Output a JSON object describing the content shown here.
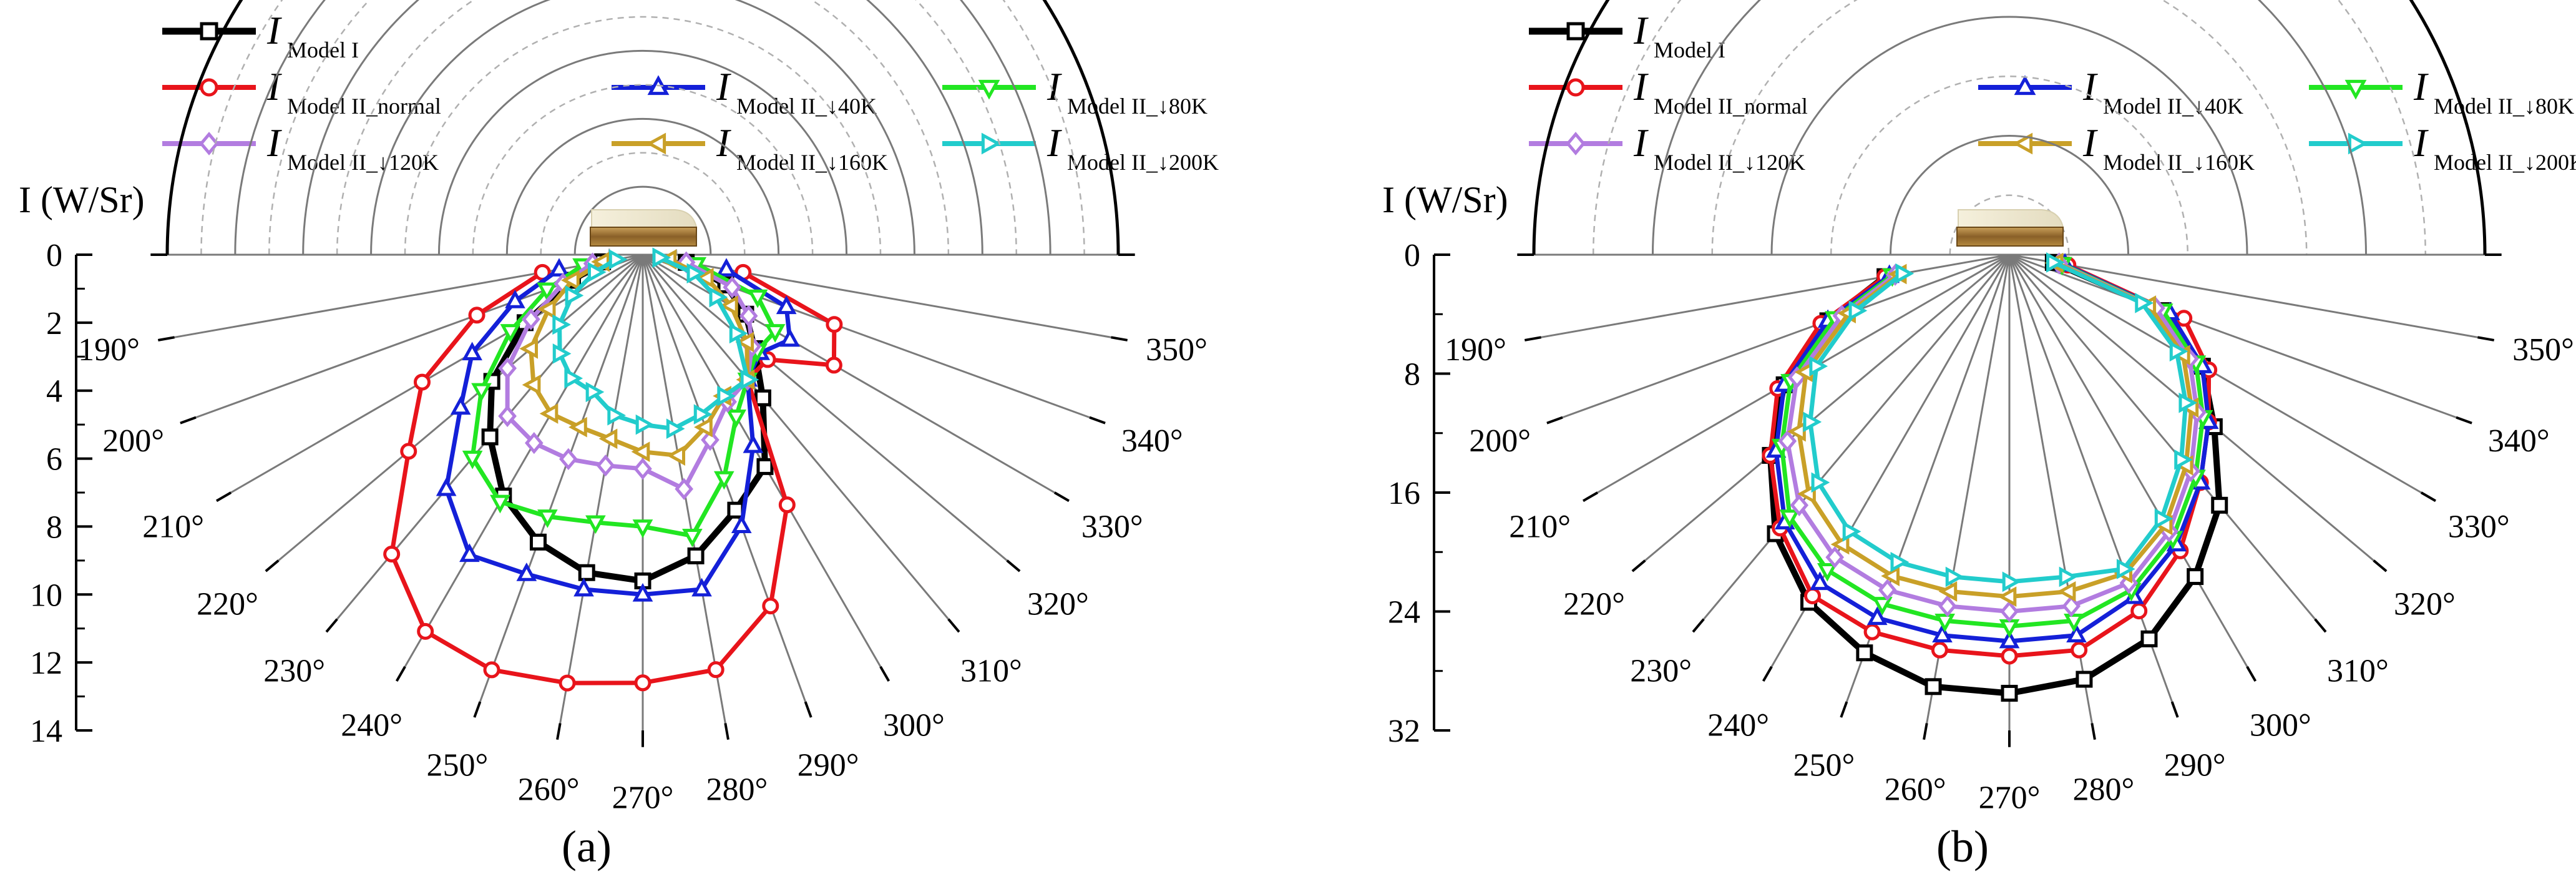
{
  "legend": [
    {
      "id": "model1",
      "main": "I",
      "sub": "Model I",
      "color": "#000000",
      "marker": "square"
    },
    {
      "id": "normal",
      "main": "I",
      "sub": "Model II_normal",
      "color": "#e8141b",
      "marker": "circle"
    },
    {
      "id": "d40",
      "main": "I",
      "sub": "Model II_↓40K",
      "color": "#1420d8",
      "marker": "triangle-up"
    },
    {
      "id": "d80",
      "main": "I",
      "sub": "Model II_↓80K",
      "color": "#22e622",
      "marker": "triangle-down"
    },
    {
      "id": "d120",
      "main": "I",
      "sub": "Model II_↓120K",
      "color": "#b27ce0",
      "marker": "diamond"
    },
    {
      "id": "d160",
      "main": "I",
      "sub": "Model II_↓160K",
      "color": "#c9a028",
      "marker": "triangle-left"
    },
    {
      "id": "d200",
      "main": "I",
      "sub": "Model II_↓200K",
      "color": "#22cccc",
      "marker": "triangle-right"
    }
  ],
  "chart_data": [
    {
      "type": "scatter",
      "panel_label": "(a)",
      "ylabel": "I (W/Sr)",
      "angle_axis_labels": [
        "190°",
        "200°",
        "210°",
        "220°",
        "230°",
        "240°",
        "250°",
        "260°",
        "270°",
        "280°",
        "290°",
        "300°",
        "310°",
        "320°",
        "330°",
        "340°",
        "350°"
      ],
      "radial_ticks": [
        "0",
        "2",
        "4",
        "6",
        "8",
        "10",
        "12",
        "14"
      ],
      "rlim": [
        0,
        14
      ],
      "angles": [
        190,
        200,
        210,
        220,
        230,
        240,
        250,
        260,
        270,
        280,
        290,
        300,
        310,
        320,
        330,
        340,
        350
      ],
      "series": [
        {
          "ref": "model1",
          "values": [
            1.2,
            2.2,
            4.0,
            5.8,
            7.0,
            8.2,
            9.0,
            9.5,
            9.6,
            9.0,
            8.0,
            7.2,
            5.5,
            4.3,
            3.5,
            2.6,
            1.3
          ]
        },
        {
          "ref": "normal",
          "values": [
            3.0,
            5.2,
            7.5,
            9.0,
            11.5,
            12.8,
            13.0,
            12.8,
            12.6,
            12.4,
            11.0,
            8.5,
            4.8,
            4.8,
            6.5,
            6.0,
            3.0
          ]
        },
        {
          "ref": "d40",
          "values": [
            2.5,
            4.0,
            5.8,
            7.0,
            9.0,
            10.2,
            10.0,
            10.0,
            10.0,
            10.0,
            8.5,
            6.5,
            4.8,
            4.5,
            5.0,
            4.5,
            2.5
          ]
        },
        {
          "ref": "d80",
          "values": [
            1.8,
            3.0,
            4.5,
            6.2,
            7.8,
            8.4,
            8.2,
            8.0,
            8.0,
            8.4,
            7.0,
            5.5,
            4.8,
            4.4,
            4.5,
            3.6,
            1.6
          ]
        },
        {
          "ref": "d120",
          "values": [
            1.5,
            2.5,
            3.8,
            5.2,
            6.2,
            6.4,
            6.4,
            6.3,
            6.3,
            7.0,
            5.8,
            5.0,
            4.8,
            4.2,
            3.6,
            2.8,
            1.3
          ]
        },
        {
          "ref": "d160",
          "values": [
            1.2,
            2.2,
            3.2,
            4.3,
            5.0,
            5.4,
            5.4,
            5.5,
            5.8,
            6.0,
            5.4,
            4.8,
            4.8,
            4.0,
            3.0,
            2.0,
            0.8
          ]
        },
        {
          "ref": "d200",
          "values": [
            0.8,
            1.5,
            2.4,
            3.2,
            3.8,
            4.2,
            4.3,
            4.8,
            5.0,
            5.2,
            5.0,
            4.8,
            4.8,
            3.6,
            2.5,
            1.6,
            0.5
          ]
        }
      ]
    },
    {
      "type": "scatter",
      "panel_label": "(b)",
      "ylabel": "I (W/Sr)",
      "angle_axis_labels": [
        "190°",
        "200°",
        "210°",
        "220°",
        "230°",
        "240°",
        "250°",
        "260°",
        "270°",
        "280°",
        "290°",
        "300°",
        "310°",
        "320°",
        "330°",
        "340°",
        "350°"
      ],
      "radial_ticks": [
        "0",
        "8",
        "16",
        "24",
        "32"
      ],
      "rlim": [
        0,
        32
      ],
      "angles": [
        190,
        200,
        210,
        220,
        230,
        240,
        250,
        260,
        270,
        280,
        290,
        300,
        310,
        320,
        330,
        340,
        350
      ],
      "series": [
        {
          "ref": "model1",
          "values": [
            8.5,
            13.0,
            17.5,
            21.0,
            24.5,
            27.0,
            28.5,
            29.5,
            29.5,
            29.0,
            27.5,
            25.0,
            22.0,
            18.0,
            15.0,
            11.0,
            3.0
          ]
        },
        {
          "ref": "normal",
          "values": [
            8.5,
            13.5,
            18.0,
            21.0,
            24.0,
            26.5,
            27.0,
            27.0,
            27.0,
            27.0,
            25.5,
            23.0,
            20.0,
            17.5,
            15.5,
            12.5,
            4.0
          ]
        },
        {
          "ref": "d40",
          "values": [
            8.2,
            13.0,
            17.5,
            20.5,
            23.5,
            25.5,
            26.0,
            26.0,
            26.0,
            26.0,
            24.5,
            22.5,
            20.0,
            17.5,
            15.0,
            11.5,
            3.8
          ]
        },
        {
          "ref": "d80",
          "values": [
            8.0,
            12.5,
            17.0,
            20.0,
            23.0,
            24.5,
            25.0,
            25.0,
            25.0,
            25.0,
            24.0,
            22.0,
            19.5,
            17.0,
            14.5,
            11.0,
            3.6
          ]
        },
        {
          "ref": "d120",
          "values": [
            7.8,
            12.0,
            16.5,
            19.5,
            22.0,
            23.5,
            24.0,
            24.0,
            24.0,
            24.0,
            23.5,
            21.5,
            19.0,
            16.5,
            14.0,
            10.5,
            3.4
          ]
        },
        {
          "ref": "d160",
          "values": [
            7.5,
            11.5,
            15.8,
            18.5,
            21.0,
            22.5,
            23.0,
            23.0,
            23.0,
            23.0,
            22.8,
            21.0,
            18.5,
            16.0,
            13.5,
            10.0,
            3.2
          ]
        },
        {
          "ref": "d200",
          "values": [
            7.3,
            11.0,
            15.0,
            17.5,
            20.0,
            21.5,
            22.0,
            22.0,
            22.0,
            22.0,
            22.5,
            20.5,
            18.0,
            15.5,
            13.0,
            9.5,
            3.0
          ]
        }
      ]
    }
  ]
}
